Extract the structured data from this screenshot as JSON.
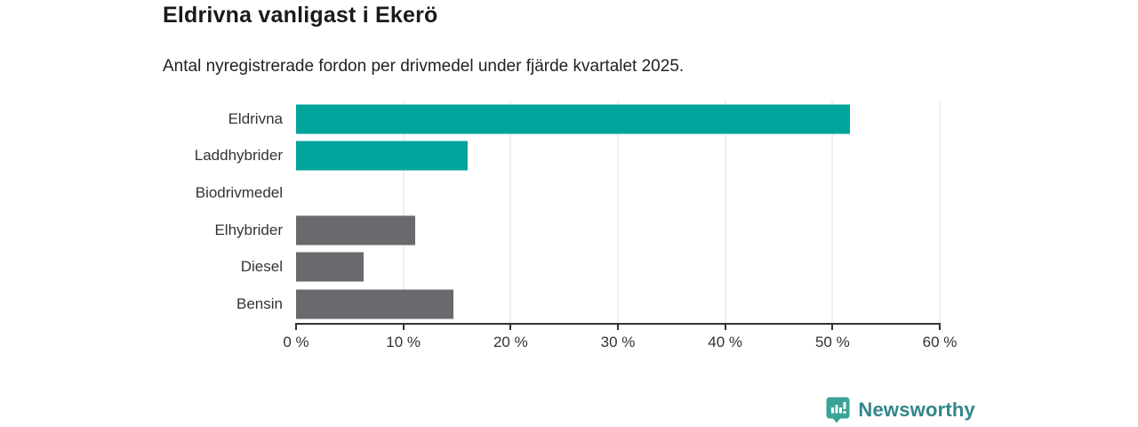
{
  "header": {
    "title": "Eldrivna vanligast i Ekerö",
    "subtitle": "Antal nyregistrerade fordon per drivmedel under fjärde kvartalet 2025."
  },
  "chart_data": {
    "type": "bar",
    "orientation": "horizontal",
    "title": "Eldrivna vanligast i Ekerö",
    "subtitle": "Antal nyregistrerade fordon per drivmedel under fjärde kvartalet 2025.",
    "categories": [
      "Eldrivna",
      "Laddhybrider",
      "Biodrivmedel",
      "Elhybrider",
      "Diesel",
      "Bensin"
    ],
    "values": [
      51.6,
      16.0,
      0,
      11.1,
      6.3,
      14.7
    ],
    "unit": "%",
    "xlabel": "",
    "ylabel": "",
    "xlim": [
      0,
      60
    ],
    "x_ticks": [
      0,
      10,
      20,
      30,
      40,
      50,
      60
    ],
    "x_tick_labels": [
      "0 %",
      "10 %",
      "20 %",
      "30 %",
      "40 %",
      "50 %",
      "60 %"
    ],
    "bar_colors": [
      "#00A49B",
      "#00A49B",
      "#00A49B",
      "#6A6A6E",
      "#6A6A6E",
      "#6A6A6E"
    ],
    "grid": "vertical-gridlines-on",
    "legend": "none"
  },
  "colors": {
    "highlight_teal": "#00A49B",
    "neutral_gray": "#6A6A6E",
    "axis": "#333333",
    "gridline": "#DFDFDF",
    "logo_icon": "#3BA296",
    "logo_text": "#31878A"
  },
  "footer": {
    "brand": "Newsworthy",
    "logo_icon": "bar-chart-speech-bubble"
  }
}
